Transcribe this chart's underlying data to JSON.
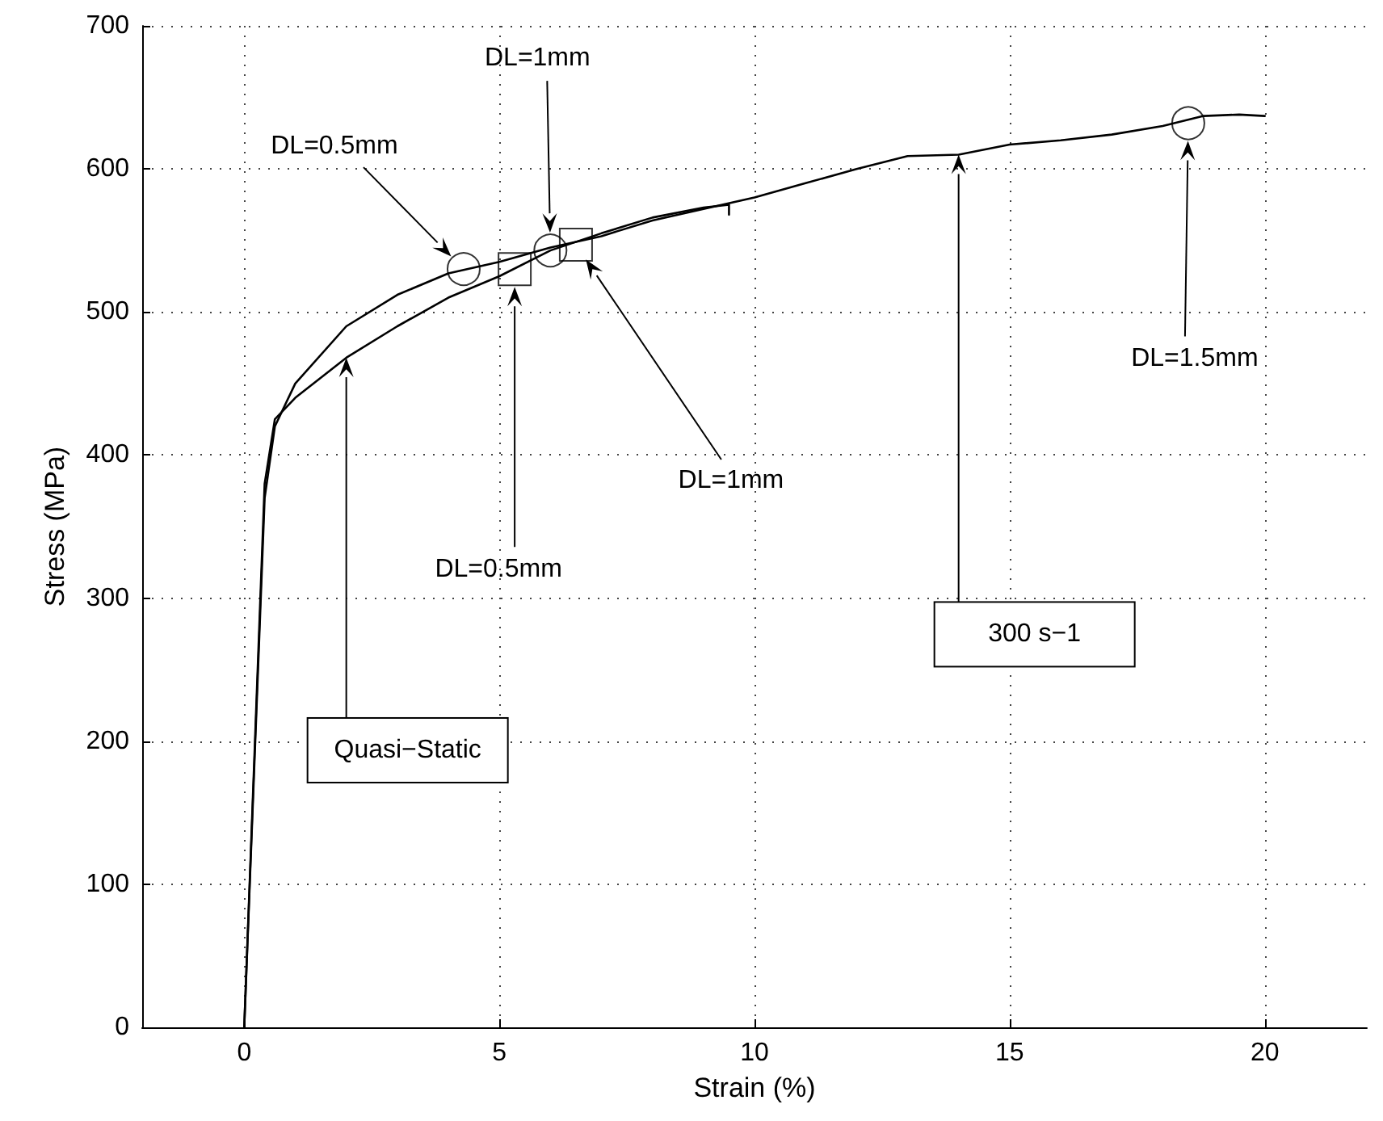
{
  "chart_data": {
    "type": "line",
    "xlabel": "Strain (%)",
    "ylabel": "Stress (MPa)",
    "xlim": [
      -2,
      22
    ],
    "xticks": [
      0,
      5,
      10,
      15,
      20
    ],
    "ylim": [
      0,
      700
    ],
    "yticks": [
      0,
      100,
      200,
      300,
      400,
      500,
      600,
      700
    ],
    "grid": true,
    "series": [
      {
        "type": "line",
        "color": "#000000",
        "marker": "none",
        "line_style": "solid",
        "x": [
          0,
          0.4,
          0.6,
          1,
          2,
          3,
          4,
          5,
          6,
          7,
          8,
          9,
          9.5,
          9.5
        ],
        "values": [
          0,
          380,
          425,
          440,
          468,
          490,
          510,
          525,
          543,
          555,
          566,
          573,
          575,
          568
        ]
      },
      {
        "type": "line",
        "color": "#000000",
        "marker": "none",
        "line_style": "solid",
        "x": [
          0,
          0.4,
          0.6,
          1,
          2,
          3,
          4,
          5,
          6,
          7,
          8,
          9,
          10,
          11,
          12,
          13,
          14,
          15,
          16,
          17,
          18,
          18.8,
          19.5,
          20
        ],
        "values": [
          0,
          370,
          420,
          450,
          490,
          512,
          527,
          535,
          545,
          553,
          564,
          572,
          580,
          590,
          600,
          609,
          610,
          617,
          620,
          624,
          630,
          637,
          638,
          637
        ]
      },
      {
        "type": "scatter",
        "color": "#000000",
        "marker": "circle",
        "x": [
          4.3,
          6,
          18.5
        ],
        "values": [
          530,
          543,
          632
        ]
      },
      {
        "type": "scatter",
        "color": "#000000",
        "marker": "square",
        "x": [
          5.3,
          6.5
        ],
        "values": [
          530,
          547
        ]
      }
    ],
    "annotations": [
      "DL=0.5mm",
      "DL=1mm",
      "DL=0.5mm",
      "DL=1mm",
      "DL=1.5mm",
      "Quasi−Static",
      "300 s−1"
    ]
  }
}
